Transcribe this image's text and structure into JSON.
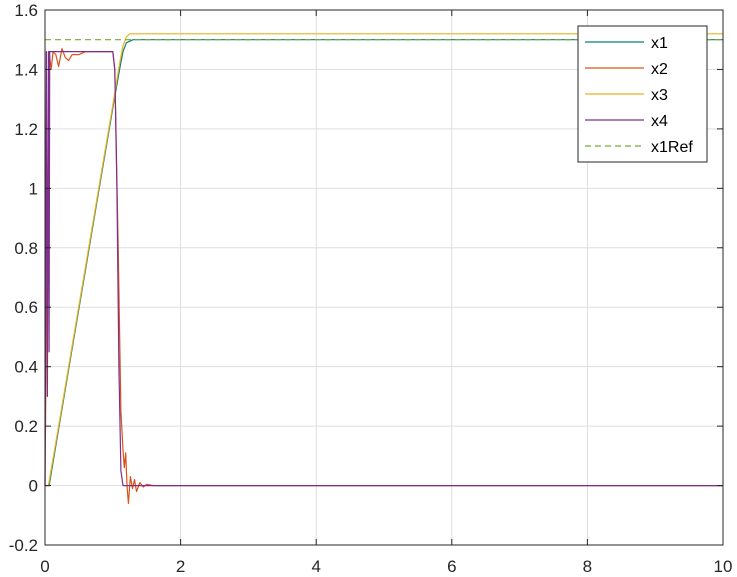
{
  "chart_data": {
    "type": "line",
    "title": "",
    "xlabel": "",
    "ylabel": "",
    "xlim": [
      0,
      10
    ],
    "ylim": [
      -0.2,
      1.6
    ],
    "xticks": [
      0,
      2,
      4,
      6,
      8,
      10
    ],
    "xtick_labels": [
      "0",
      "2",
      "4",
      "6",
      "8",
      "10"
    ],
    "yticks": [
      -0.2,
      0,
      0.2,
      0.4,
      0.6,
      0.8,
      1,
      1.2,
      1.4,
      1.6
    ],
    "ytick_labels": [
      "-0.2",
      "0",
      "0.2",
      "0.4",
      "0.6",
      "0.8",
      "1",
      "1.2",
      "1.4",
      "1.6"
    ],
    "grid": true,
    "legend_position": "top-right",
    "series": [
      {
        "name": "x1",
        "color": "#0f7f7b",
        "dash": "solid",
        "x": [
          0,
          0.06,
          0.2,
          0.4,
          0.6,
          0.8,
          1.0,
          1.1,
          1.15,
          1.2,
          1.3,
          1.5,
          2,
          4,
          6,
          8,
          10
        ],
        "y": [
          0,
          0,
          0.19,
          0.46,
          0.73,
          1.0,
          1.27,
          1.4,
          1.46,
          1.49,
          1.5,
          1.5,
          1.5,
          1.5,
          1.5,
          1.5,
          1.5
        ]
      },
      {
        "name": "x2",
        "color": "#d95319",
        "dash": "solid",
        "x": [
          0,
          0.03,
          0.06,
          0.09,
          0.12,
          0.16,
          0.2,
          0.25,
          0.3,
          0.35,
          0.4,
          0.5,
          0.6,
          0.8,
          1.0,
          1.03,
          1.08,
          1.12,
          1.15,
          1.17,
          1.19,
          1.21,
          1.23,
          1.26,
          1.29,
          1.32,
          1.35,
          1.4,
          1.45,
          1.5,
          1.6,
          1.7,
          2,
          4,
          6,
          8,
          10
        ],
        "y": [
          0,
          0.8,
          1.46,
          1.4,
          1.46,
          1.45,
          1.41,
          1.47,
          1.44,
          1.43,
          1.45,
          1.45,
          1.46,
          1.46,
          1.46,
          1.4,
          0.8,
          0.25,
          0.12,
          0.06,
          0.11,
          0.0,
          -0.06,
          0.03,
          -0.01,
          0.02,
          -0.02,
          0.01,
          -0.005,
          0.004,
          0,
          0,
          0,
          0,
          0,
          0,
          0
        ]
      },
      {
        "name": "x3",
        "color": "#edb120",
        "dash": "solid",
        "x": [
          0,
          0.05,
          0.2,
          0.4,
          0.6,
          0.8,
          1.0,
          1.1,
          1.15,
          1.2,
          1.25,
          1.3,
          2,
          4,
          6,
          8,
          10
        ],
        "y": [
          0,
          0,
          0.2,
          0.47,
          0.74,
          1.01,
          1.28,
          1.42,
          1.48,
          1.51,
          1.52,
          1.52,
          1.52,
          1.52,
          1.52,
          1.52,
          1.52
        ]
      },
      {
        "name": "x4",
        "color": "#7e2f8e",
        "dash": "solid",
        "x": [
          0,
          0.02,
          0.035,
          0.05,
          0.06,
          0.07,
          0.09,
          0.12,
          0.2,
          0.5,
          0.8,
          1.0,
          1.03,
          1.06,
          1.09,
          1.12,
          1.15,
          1.2,
          1.25,
          1.3,
          1.4,
          2,
          4,
          6,
          8,
          10
        ],
        "y": [
          0,
          1.46,
          0.3,
          1.46,
          0.45,
          1.46,
          1.46,
          1.46,
          1.46,
          1.46,
          1.46,
          1.46,
          1.4,
          1.0,
          0.4,
          0.05,
          0.0,
          0.0,
          0.0,
          0.0,
          0.0,
          0.0,
          0.0,
          0.0,
          0.0,
          0.0
        ]
      },
      {
        "name": "x1Ref",
        "color": "#77ac30",
        "dash": "dashed",
        "x": [
          0,
          10
        ],
        "y": [
          1.5,
          1.5
        ]
      }
    ]
  }
}
